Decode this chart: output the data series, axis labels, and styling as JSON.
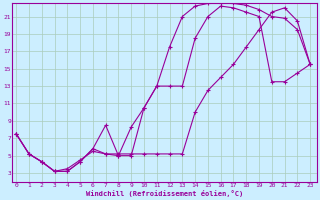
{
  "xlabel": "Windchill (Refroidissement éolien,°C)",
  "bg_color": "#cceeff",
  "line_color": "#990099",
  "grid_color": "#aaccbb",
  "x_ticks": [
    0,
    1,
    2,
    3,
    4,
    5,
    6,
    7,
    8,
    9,
    10,
    11,
    12,
    13,
    14,
    15,
    16,
    17,
    18,
    19,
    20,
    21,
    22,
    23
  ],
  "y_ticks": [
    3,
    5,
    7,
    9,
    11,
    13,
    15,
    17,
    19,
    21
  ],
  "xlim": [
    -0.3,
    23.5
  ],
  "ylim": [
    2.0,
    22.5
  ],
  "curve1_x": [
    0,
    1,
    2,
    3,
    4,
    5,
    6,
    7,
    8,
    9,
    10,
    11,
    12,
    13,
    14,
    15,
    16,
    17,
    18,
    19,
    20,
    21,
    22,
    23
  ],
  "curve1_y": [
    7.5,
    5.2,
    4.3,
    3.2,
    3.2,
    4.3,
    5.8,
    5.2,
    5.0,
    8.3,
    10.5,
    13.0,
    17.5,
    21.0,
    22.2,
    22.5,
    22.5,
    22.5,
    22.3,
    21.8,
    21.0,
    20.8,
    19.5,
    15.5
  ],
  "curve2_x": [
    0,
    1,
    2,
    3,
    4,
    5,
    6,
    7,
    8,
    9,
    10,
    11,
    12,
    13,
    14,
    15,
    16,
    17,
    18,
    19,
    20,
    21,
    22,
    23
  ],
  "curve2_y": [
    7.5,
    5.2,
    4.3,
    3.2,
    3.2,
    4.3,
    5.8,
    8.5,
    5.0,
    5.0,
    10.5,
    13.0,
    13.0,
    13.0,
    18.5,
    21.0,
    22.2,
    22.0,
    21.5,
    21.0,
    13.5,
    13.5,
    14.5,
    15.5
  ],
  "curve3_x": [
    0,
    1,
    2,
    3,
    4,
    5,
    6,
    7,
    8,
    9,
    10,
    11,
    12,
    13,
    14,
    15,
    16,
    17,
    18,
    19,
    20,
    21,
    22,
    23
  ],
  "curve3_y": [
    7.5,
    5.2,
    4.3,
    3.2,
    3.5,
    4.5,
    5.5,
    5.2,
    5.2,
    5.2,
    5.2,
    5.2,
    5.2,
    5.2,
    10.0,
    12.5,
    14.0,
    15.5,
    17.5,
    19.5,
    21.5,
    22.0,
    20.5,
    15.5
  ]
}
